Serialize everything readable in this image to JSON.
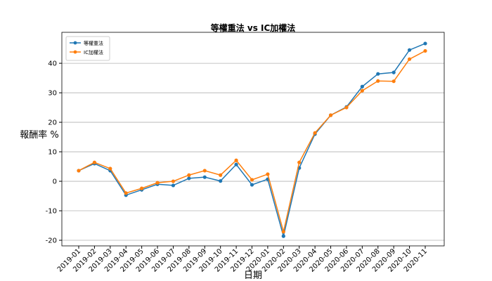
{
  "chart_data": {
    "type": "line",
    "title": "等權重法 vs IC加權法",
    "x_label": "日期",
    "y_label": "報酬率 %",
    "categories": [
      "2019-01",
      "2019-02",
      "2019-03",
      "2019-04",
      "2019-05",
      "2019-06",
      "2019-07",
      "2019-08",
      "2019-09",
      "2019-10",
      "2019-11",
      "2019-12",
      "2020-01",
      "2020-02",
      "2020-03",
      "2020-04",
      "2020-05",
      "2020-06",
      "2020-07",
      "2020-08",
      "2020-09",
      "2020-10",
      "2020-11"
    ],
    "series": [
      {
        "name": "等權重法",
        "color": "#1f77b4",
        "values": [
          3.6,
          6.0,
          3.6,
          -4.7,
          -2.9,
          -1.0,
          -1.4,
          1.0,
          1.4,
          0.1,
          5.7,
          -1.2,
          0.7,
          -18.6,
          4.5,
          16.0,
          22.4,
          25.2,
          32.1,
          36.4,
          36.9,
          44.5,
          46.7
        ]
      },
      {
        "name": "IC加權法",
        "color": "#ff7f0e",
        "values": [
          3.6,
          6.4,
          4.3,
          -4.0,
          -2.4,
          -0.5,
          0.0,
          2.1,
          3.6,
          2.1,
          7.1,
          0.5,
          2.4,
          -17.1,
          6.4,
          16.4,
          22.4,
          25.0,
          30.7,
          34.0,
          33.9,
          41.4,
          44.2
        ]
      }
    ],
    "ylim": [
      -21.9,
      50.5
    ],
    "yticks": [
      -20,
      -10,
      0,
      10,
      20,
      30,
      40
    ],
    "grid": true,
    "legend": "upper left"
  }
}
